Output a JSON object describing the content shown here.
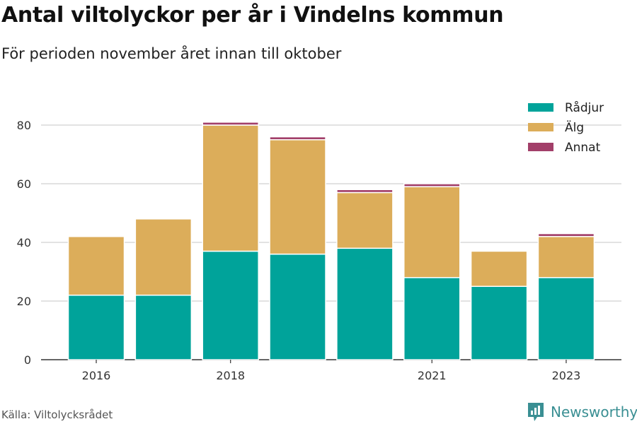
{
  "header": {
    "title": "Antal viltolyckor per år i Vindelns kommun",
    "subtitle": "För perioden november året innan till oktober"
  },
  "footer": {
    "source": "Källa: Viltolycksrådet",
    "brand": "Newsworthy",
    "brand_icon": "bar-chart-logo-icon",
    "brand_color": "#3a8f93"
  },
  "chart_data": {
    "type": "bar",
    "stacked": true,
    "categories": [
      "2016",
      "2017",
      "2018",
      "2019",
      "2020",
      "2021",
      "2022",
      "2023"
    ],
    "x_tick_labels": [
      "2016",
      "",
      "2018",
      "",
      "",
      "2021",
      "",
      "2023"
    ],
    "series": [
      {
        "name": "Rådjur",
        "color": "#00a39a",
        "values": [
          22,
          22,
          37,
          36,
          38,
          28,
          25,
          28
        ]
      },
      {
        "name": "Älg",
        "color": "#dcad5a",
        "values": [
          20,
          26,
          43,
          39,
          19,
          31,
          12,
          14
        ]
      },
      {
        "name": "Annat",
        "color": "#a23f69",
        "values": [
          0,
          0,
          1,
          1,
          1,
          1,
          0,
          1
        ]
      }
    ],
    "yticks": [
      0,
      20,
      40,
      60,
      80
    ],
    "ylim": [
      0,
      88
    ],
    "grid": true,
    "legend": "top-right"
  }
}
